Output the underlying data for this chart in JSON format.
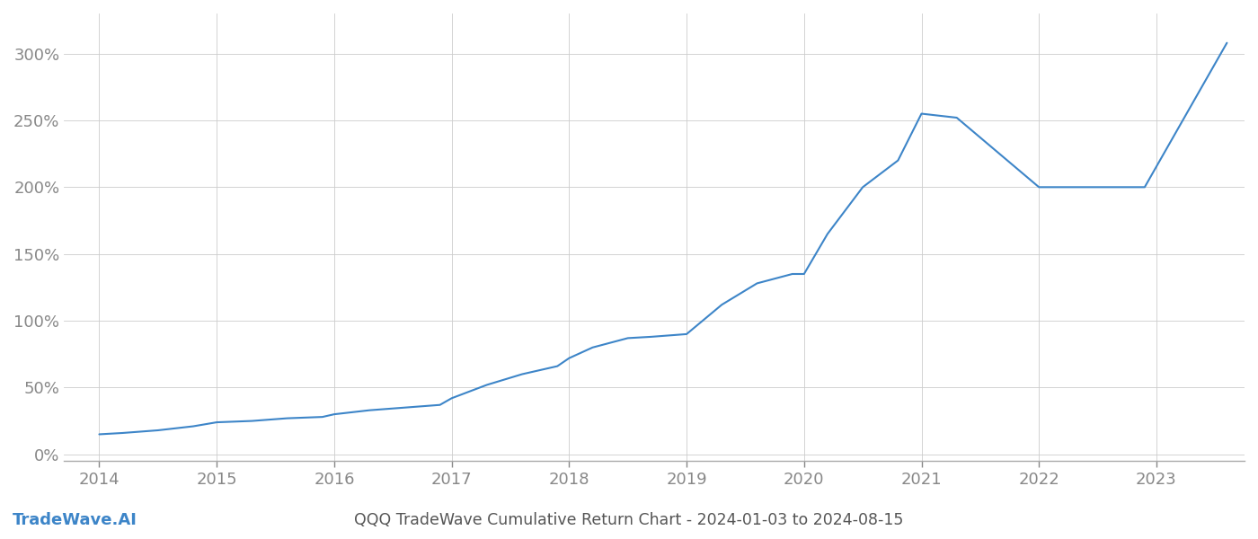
{
  "title": "QQQ TradeWave Cumulative Return Chart - 2024-01-03 to 2024-08-15",
  "watermark": "TradeWave.AI",
  "line_color": "#3d85c8",
  "line_width": 1.5,
  "background_color": "#ffffff",
  "grid_color": "#cccccc",
  "x_years": [
    2014,
    2015,
    2016,
    2017,
    2018,
    2019,
    2020,
    2021,
    2022,
    2023
  ],
  "x_values": [
    2014.0,
    2014.2,
    2014.5,
    2014.8,
    2015.0,
    2015.3,
    2015.6,
    2015.9,
    2016.0,
    2016.3,
    2016.6,
    2016.9,
    2017.0,
    2017.3,
    2017.6,
    2017.9,
    2018.0,
    2018.2,
    2018.5,
    2018.7,
    2019.0,
    2019.3,
    2019.6,
    2019.9,
    2020.0,
    2020.2,
    2020.5,
    2020.8,
    2021.0,
    2021.3,
    2022.0,
    2022.9,
    2023.6
  ],
  "y_values": [
    15,
    16,
    18,
    21,
    24,
    25,
    27,
    28,
    30,
    33,
    35,
    37,
    42,
    52,
    60,
    66,
    72,
    80,
    87,
    88,
    90,
    112,
    128,
    135,
    135,
    165,
    200,
    220,
    255,
    252,
    200,
    200,
    308
  ],
  "yticks": [
    0,
    50,
    100,
    150,
    200,
    250,
    300
  ],
  "ylim": [
    -5,
    330
  ],
  "xlim": [
    2013.7,
    2023.75
  ],
  "tick_fontsize": 13,
  "title_fontsize": 12.5,
  "watermark_fontsize": 13,
  "tick_color": "#888888",
  "title_color": "#555555",
  "watermark_color": "#3d85c8"
}
